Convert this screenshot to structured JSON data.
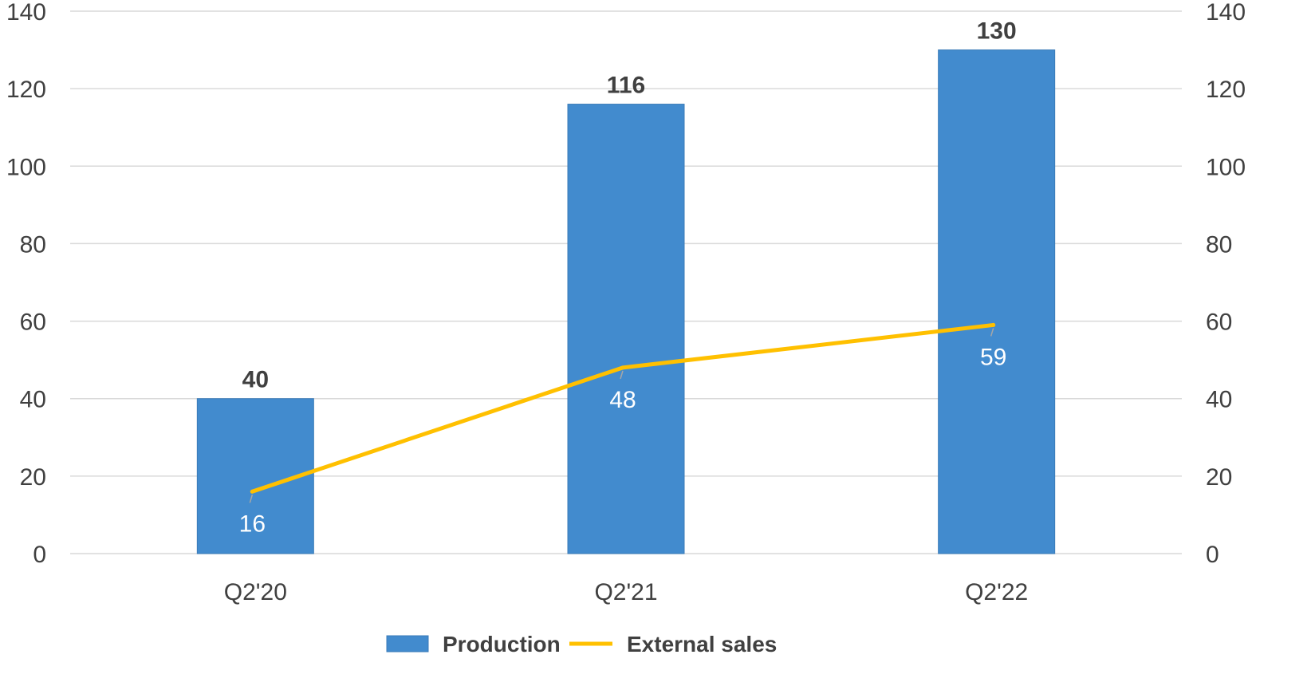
{
  "chart_data": {
    "type": "bar",
    "categories": [
      "Q2'20",
      "Q2'21",
      "Q2'22"
    ],
    "series": [
      {
        "name": "Production",
        "type": "bar",
        "values": [
          40,
          116,
          130
        ],
        "color": "#428BCE",
        "label_style": "bold-above"
      },
      {
        "name": "External sales",
        "type": "line",
        "values": [
          16,
          48,
          59
        ],
        "color": "#FFC000",
        "label_style": "below-white"
      }
    ],
    "y_left": {
      "min": 0,
      "max": 140,
      "ticks": [
        0,
        20,
        40,
        60,
        80,
        100,
        120,
        140
      ]
    },
    "y_right": {
      "min": 0,
      "max": 140,
      "ticks": [
        0,
        20,
        40,
        60,
        80,
        100,
        120,
        140
      ]
    },
    "grid": true,
    "legend": {
      "position": "bottom"
    },
    "gridline_color": "#D9D9D9",
    "text_color": "#404040"
  }
}
